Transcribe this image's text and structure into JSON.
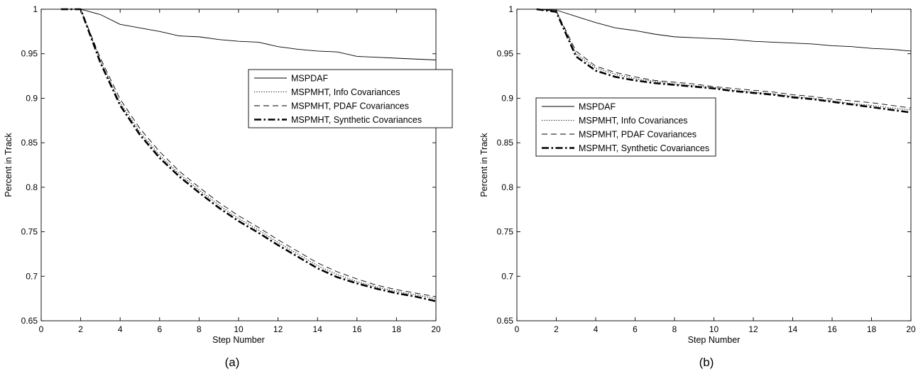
{
  "chart_data": [
    {
      "type": "line",
      "panel_label": "(a)",
      "xlabel": "Step Number",
      "ylabel": "Percent in Track",
      "xlim": [
        0,
        20
      ],
      "ylim": [
        0.65,
        1
      ],
      "xticks": [
        0,
        2,
        4,
        6,
        8,
        10,
        12,
        14,
        16,
        18,
        20
      ],
      "yticks": [
        0.65,
        0.7,
        0.75,
        0.8,
        0.85,
        0.9,
        0.95,
        1
      ],
      "grid": false,
      "legend_position": "center-right",
      "x": [
        1,
        2,
        3,
        4,
        5,
        6,
        7,
        8,
        9,
        10,
        11,
        12,
        13,
        14,
        15,
        16,
        17,
        18,
        19,
        20
      ],
      "series": [
        {
          "name": "MSPDAF",
          "style": "solid",
          "color": "#000000",
          "values": [
            1.0,
            1.0,
            0.994,
            0.983,
            0.979,
            0.975,
            0.97,
            0.969,
            0.966,
            0.964,
            0.963,
            0.958,
            0.955,
            0.953,
            0.952,
            0.947,
            0.946,
            0.945,
            0.944,
            0.943
          ]
        },
        {
          "name": "MSPMHT, Info Covariances",
          "style": "dotted",
          "color": "#000000",
          "values": [
            1.0,
            1.0,
            0.942,
            0.895,
            0.862,
            0.836,
            0.815,
            0.797,
            0.78,
            0.765,
            0.752,
            0.738,
            0.725,
            0.712,
            0.702,
            0.694,
            0.688,
            0.683,
            0.679,
            0.675
          ]
        },
        {
          "name": "MSPMHT, PDAF Covariances",
          "style": "dashed",
          "color": "#000000",
          "values": [
            1.0,
            1.0,
            0.945,
            0.899,
            0.866,
            0.84,
            0.818,
            0.8,
            0.783,
            0.768,
            0.755,
            0.741,
            0.728,
            0.715,
            0.705,
            0.697,
            0.69,
            0.685,
            0.681,
            0.677
          ]
        },
        {
          "name": "MSPMHT, Synthetic Covariances",
          "style": "dashdot-bold",
          "color": "#000000",
          "values": [
            1.0,
            1.0,
            0.94,
            0.892,
            0.859,
            0.833,
            0.812,
            0.794,
            0.777,
            0.762,
            0.749,
            0.735,
            0.722,
            0.709,
            0.699,
            0.692,
            0.686,
            0.681,
            0.677,
            0.672
          ]
        }
      ]
    },
    {
      "type": "line",
      "panel_label": "(b)",
      "xlabel": "Step Number",
      "ylabel": "Percent in Track",
      "xlim": [
        0,
        20
      ],
      "ylim": [
        0.65,
        1
      ],
      "xticks": [
        0,
        2,
        4,
        6,
        8,
        10,
        12,
        14,
        16,
        18,
        20
      ],
      "yticks": [
        0.65,
        0.7,
        0.75,
        0.8,
        0.85,
        0.9,
        0.95,
        1
      ],
      "grid": false,
      "legend_position": "center-left",
      "x": [
        1,
        2,
        3,
        4,
        5,
        6,
        7,
        8,
        9,
        10,
        11,
        12,
        13,
        14,
        15,
        16,
        17,
        18,
        19,
        20
      ],
      "series": [
        {
          "name": "MSPDAF",
          "style": "solid",
          "color": "#000000",
          "values": [
            1.0,
            0.999,
            0.992,
            0.985,
            0.979,
            0.976,
            0.972,
            0.969,
            0.968,
            0.967,
            0.966,
            0.964,
            0.963,
            0.962,
            0.961,
            0.959,
            0.958,
            0.956,
            0.955,
            0.953
          ]
        },
        {
          "name": "MSPMHT, Info Covariances",
          "style": "dotted",
          "color": "#000000",
          "values": [
            1.0,
            0.998,
            0.95,
            0.934,
            0.927,
            0.922,
            0.919,
            0.916,
            0.914,
            0.912,
            0.909,
            0.907,
            0.905,
            0.902,
            0.9,
            0.897,
            0.894,
            0.892,
            0.889,
            0.887
          ]
        },
        {
          "name": "MSPMHT, PDAF Covariances",
          "style": "dashed",
          "color": "#000000",
          "values": [
            1.0,
            0.998,
            0.953,
            0.936,
            0.929,
            0.924,
            0.92,
            0.918,
            0.916,
            0.913,
            0.911,
            0.909,
            0.907,
            0.904,
            0.902,
            0.899,
            0.897,
            0.895,
            0.892,
            0.889
          ]
        },
        {
          "name": "MSPMHT, Synthetic Covariances",
          "style": "dashdot-bold",
          "color": "#000000",
          "values": [
            1.0,
            0.997,
            0.947,
            0.931,
            0.924,
            0.92,
            0.917,
            0.915,
            0.913,
            0.911,
            0.908,
            0.906,
            0.904,
            0.901,
            0.899,
            0.896,
            0.893,
            0.89,
            0.887,
            0.884
          ]
        }
      ]
    }
  ]
}
